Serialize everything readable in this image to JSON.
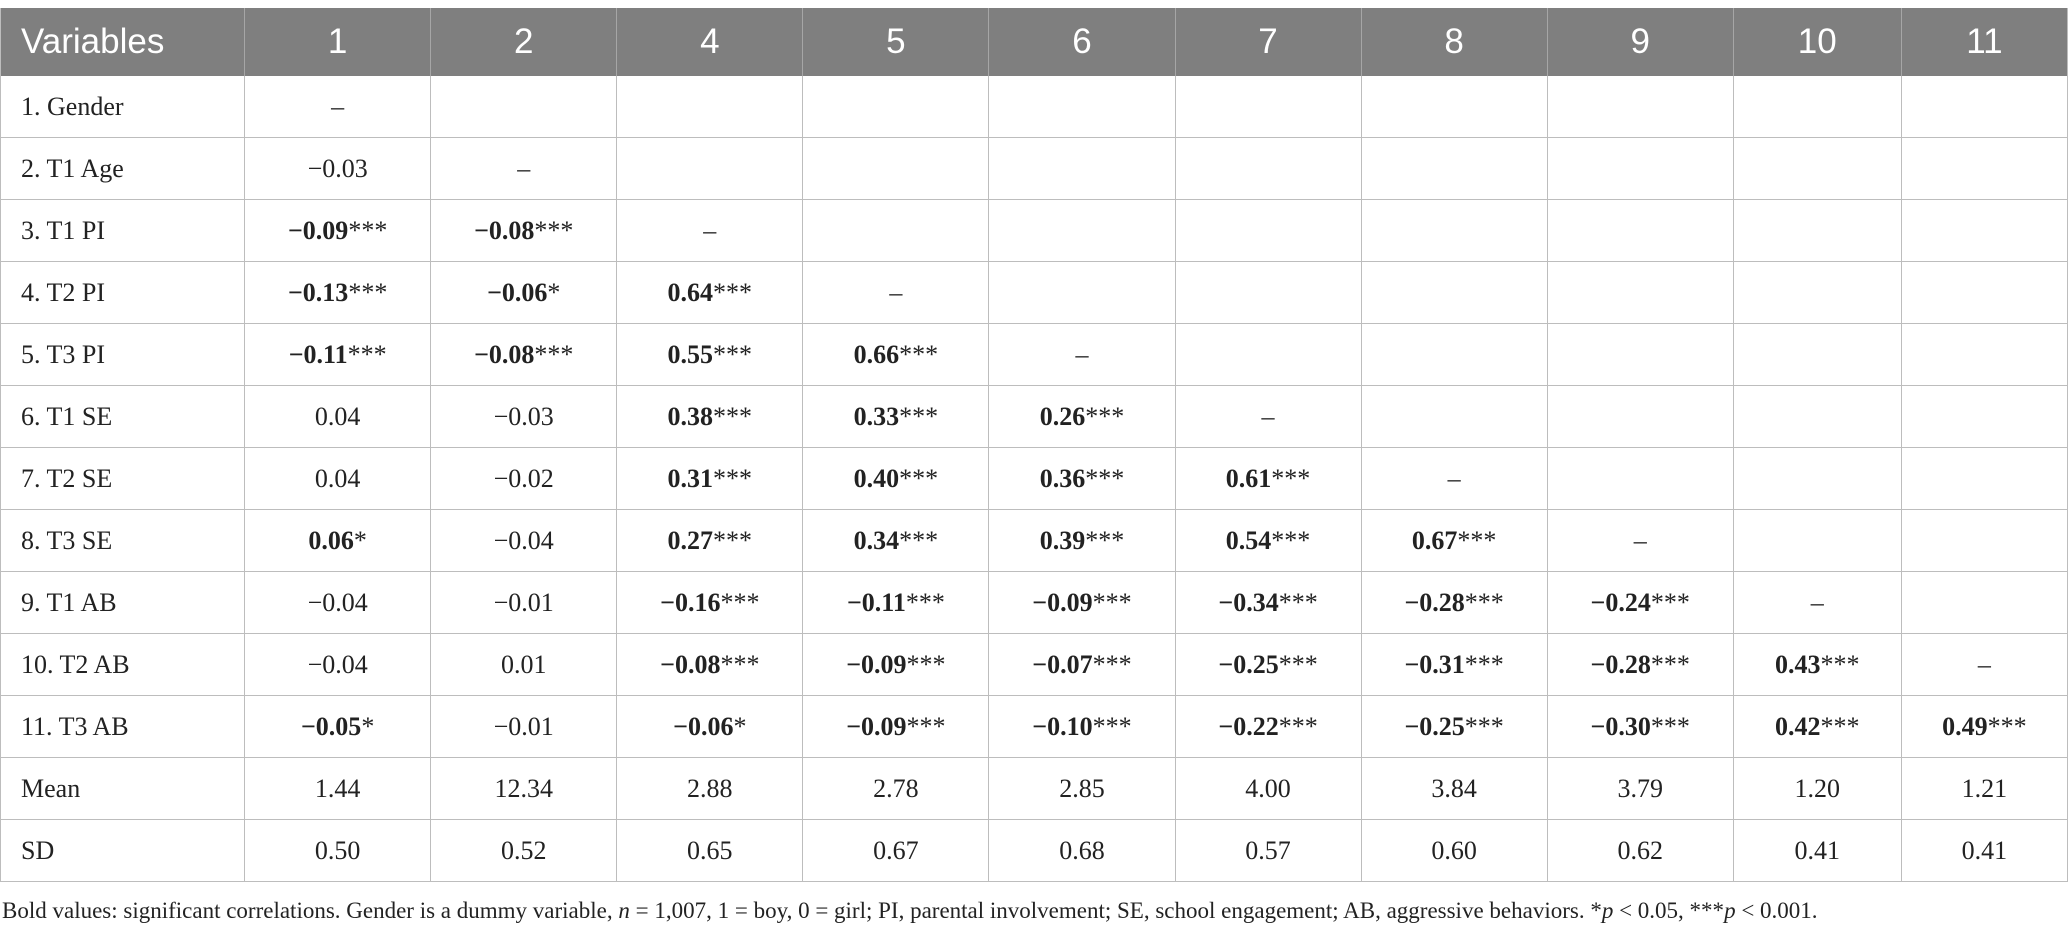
{
  "table": {
    "headers": [
      "Variables",
      "1",
      "2",
      "4",
      "5",
      "6",
      "7",
      "8",
      "9",
      "10",
      "11"
    ],
    "rows": [
      {
        "label": "1. Gender",
        "cells": [
          {
            "v": "–"
          },
          {
            "v": ""
          },
          {
            "v": ""
          },
          {
            "v": ""
          },
          {
            "v": ""
          },
          {
            "v": ""
          },
          {
            "v": ""
          },
          {
            "v": ""
          },
          {
            "v": ""
          },
          {
            "v": ""
          }
        ]
      },
      {
        "label": "2. T1 Age",
        "cells": [
          {
            "v": "−0.03"
          },
          {
            "v": "–"
          },
          {
            "v": ""
          },
          {
            "v": ""
          },
          {
            "v": ""
          },
          {
            "v": ""
          },
          {
            "v": ""
          },
          {
            "v": ""
          },
          {
            "v": ""
          },
          {
            "v": ""
          }
        ]
      },
      {
        "label": "3. T1 PI",
        "cells": [
          {
            "v": "−0.09",
            "bold": true,
            "sig": "***"
          },
          {
            "v": "−0.08",
            "bold": true,
            "sig": "***"
          },
          {
            "v": "–"
          },
          {
            "v": ""
          },
          {
            "v": ""
          },
          {
            "v": ""
          },
          {
            "v": ""
          },
          {
            "v": ""
          },
          {
            "v": ""
          },
          {
            "v": ""
          }
        ]
      },
      {
        "label": "4. T2 PI",
        "cells": [
          {
            "v": "−0.13",
            "bold": true,
            "sig": "***"
          },
          {
            "v": "−0.06",
            "bold": true,
            "sig": "*"
          },
          {
            "v": "0.64",
            "bold": true,
            "sig": "***"
          },
          {
            "v": "–"
          },
          {
            "v": ""
          },
          {
            "v": ""
          },
          {
            "v": ""
          },
          {
            "v": ""
          },
          {
            "v": ""
          },
          {
            "v": ""
          }
        ]
      },
      {
        "label": "5. T3 PI",
        "cells": [
          {
            "v": "−0.11",
            "bold": true,
            "sig": "***"
          },
          {
            "v": "−0.08",
            "bold": true,
            "sig": "***"
          },
          {
            "v": "0.55",
            "bold": true,
            "sig": "***"
          },
          {
            "v": "0.66",
            "bold": true,
            "sig": "***"
          },
          {
            "v": "–"
          },
          {
            "v": ""
          },
          {
            "v": ""
          },
          {
            "v": ""
          },
          {
            "v": ""
          },
          {
            "v": ""
          }
        ]
      },
      {
        "label": "6. T1 SE",
        "cells": [
          {
            "v": "0.04"
          },
          {
            "v": "−0.03"
          },
          {
            "v": "0.38",
            "bold": true,
            "sig": "***"
          },
          {
            "v": "0.33",
            "bold": true,
            "sig": "***"
          },
          {
            "v": "0.26",
            "bold": true,
            "sig": "***"
          },
          {
            "v": "–"
          },
          {
            "v": ""
          },
          {
            "v": ""
          },
          {
            "v": ""
          },
          {
            "v": ""
          }
        ]
      },
      {
        "label": "7. T2 SE",
        "cells": [
          {
            "v": "0.04"
          },
          {
            "v": "−0.02"
          },
          {
            "v": "0.31",
            "bold": true,
            "sig": "***"
          },
          {
            "v": "0.40",
            "bold": true,
            "sig": "***"
          },
          {
            "v": "0.36",
            "bold": true,
            "sig": "***"
          },
          {
            "v": "0.61",
            "bold": true,
            "sig": "***"
          },
          {
            "v": "–"
          },
          {
            "v": ""
          },
          {
            "v": ""
          },
          {
            "v": ""
          }
        ]
      },
      {
        "label": "8. T3 SE",
        "cells": [
          {
            "v": "0.06",
            "bold": true,
            "sig": "*"
          },
          {
            "v": "−0.04"
          },
          {
            "v": "0.27",
            "bold": true,
            "sig": "***"
          },
          {
            "v": "0.34",
            "bold": true,
            "sig": "***"
          },
          {
            "v": "0.39",
            "bold": true,
            "sig": "***"
          },
          {
            "v": "0.54",
            "bold": true,
            "sig": "***"
          },
          {
            "v": "0.67",
            "bold": true,
            "sig": "***"
          },
          {
            "v": "–"
          },
          {
            "v": ""
          },
          {
            "v": ""
          }
        ]
      },
      {
        "label": "9. T1 AB",
        "cells": [
          {
            "v": "−0.04"
          },
          {
            "v": "−0.01"
          },
          {
            "v": "−0.16",
            "bold": true,
            "sig": "***"
          },
          {
            "v": "−0.11",
            "bold": true,
            "sig": "***"
          },
          {
            "v": "−0.09",
            "bold": true,
            "sig": "***"
          },
          {
            "v": "−0.34",
            "bold": true,
            "sig": "***"
          },
          {
            "v": "−0.28",
            "bold": true,
            "sig": "***"
          },
          {
            "v": "−0.24",
            "bold": true,
            "sig": "***"
          },
          {
            "v": "–"
          },
          {
            "v": ""
          }
        ]
      },
      {
        "label": "10. T2 AB",
        "cells": [
          {
            "v": "−0.04"
          },
          {
            "v": "0.01"
          },
          {
            "v": "−0.08",
            "bold": true,
            "sig": "***"
          },
          {
            "v": "−0.09",
            "bold": true,
            "sig": "***"
          },
          {
            "v": "−0.07",
            "bold": true,
            "sig": "***"
          },
          {
            "v": "−0.25",
            "bold": true,
            "sig": "***"
          },
          {
            "v": "−0.31",
            "bold": true,
            "sig": "***"
          },
          {
            "v": "−0.28",
            "bold": true,
            "sig": "***"
          },
          {
            "v": "0.43",
            "bold": true,
            "sig": "***"
          },
          {
            "v": "–"
          }
        ]
      },
      {
        "label": "11. T3 AB",
        "cells": [
          {
            "v": "−0.05",
            "bold": true,
            "sig": "*"
          },
          {
            "v": "−0.01"
          },
          {
            "v": "−0.06",
            "bold": true,
            "sig": "*"
          },
          {
            "v": "−0.09",
            "bold": true,
            "sig": "***"
          },
          {
            "v": "−0.10",
            "bold": true,
            "sig": "***"
          },
          {
            "v": "−0.22",
            "bold": true,
            "sig": "***"
          },
          {
            "v": "−0.25",
            "bold": true,
            "sig": "***"
          },
          {
            "v": "−0.30",
            "bold": true,
            "sig": "***"
          },
          {
            "v": "0.42",
            "bold": true,
            "sig": "***"
          },
          {
            "v": "0.49",
            "bold": true,
            "sig": "***"
          }
        ]
      },
      {
        "label": "Mean",
        "cells": [
          {
            "v": "1.44"
          },
          {
            "v": "12.34"
          },
          {
            "v": "2.88"
          },
          {
            "v": "2.78"
          },
          {
            "v": "2.85"
          },
          {
            "v": "4.00"
          },
          {
            "v": "3.84"
          },
          {
            "v": "3.79"
          },
          {
            "v": "1.20"
          },
          {
            "v": "1.21"
          }
        ]
      },
      {
        "label": "SD",
        "cells": [
          {
            "v": "0.50"
          },
          {
            "v": "0.52"
          },
          {
            "v": "0.65"
          },
          {
            "v": "0.67"
          },
          {
            "v": "0.68"
          },
          {
            "v": "0.57"
          },
          {
            "v": "0.60"
          },
          {
            "v": "0.62"
          },
          {
            "v": "0.41"
          },
          {
            "v": "0.41"
          }
        ]
      }
    ]
  },
  "footnote": {
    "part1": "Bold values: significant correlations. Gender is a dummy variable, ",
    "n_symbol": "n",
    "part2": " = 1,007, 1 = boy, 0 = girl; PI, parental involvement; SE, school engagement; AB, aggressive behaviors. *",
    "p1_symbol": "p",
    "part3": " < 0.05, ***",
    "p2_symbol": "p",
    "part4": " < 0.001."
  }
}
